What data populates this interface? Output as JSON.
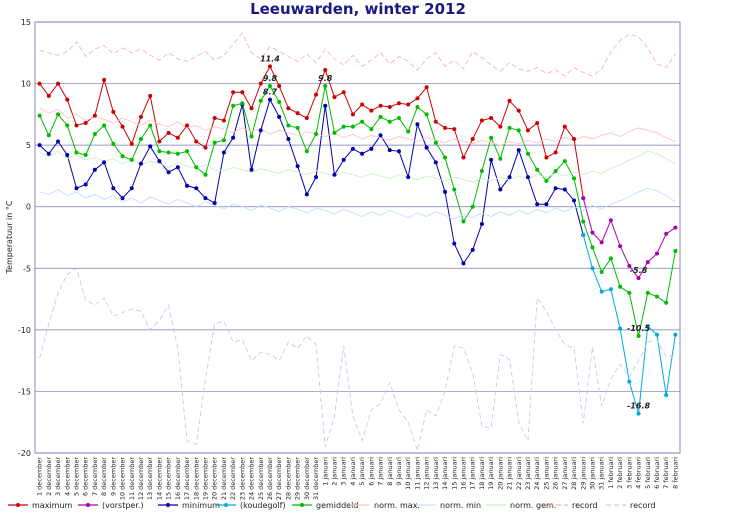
{
  "chart_data": {
    "type": "line",
    "title": "Leeuwarden, winter 2012",
    "y_label": "Temperatuur in °C",
    "categories": [
      "1 december",
      "2 december",
      "3 december",
      "4 december",
      "5 december",
      "6 december",
      "7 december",
      "8 december",
      "9 december",
      "10 december",
      "11 december",
      "12 december",
      "13 december",
      "14 december",
      "15 december",
      "16 december",
      "17 december",
      "18 december",
      "19 december",
      "20 december",
      "21 december",
      "22 december",
      "23 december",
      "24 december",
      "25 december",
      "26 december",
      "27 december",
      "28 december",
      "29 december",
      "30 december",
      "31 december",
      "1 januari",
      "2 januari",
      "3 januari",
      "4 januari",
      "5 januari",
      "6 januari",
      "7 januari",
      "8 januari",
      "9 januari",
      "10 januari",
      "11 januari",
      "12 januari",
      "13 januari",
      "14 januari",
      "15 januari",
      "16 januari",
      "17 januari",
      "18 januari",
      "19 januari",
      "20 januari",
      "21 januari",
      "22 januari",
      "23 januari",
      "24 januari",
      "25 januari",
      "26 januari",
      "27 januari",
      "28 januari",
      "29 januari",
      "30 januari",
      "31 januari",
      "1 februari",
      "2 februari",
      "3 februari",
      "4 februari",
      "5 februari",
      "6 februari",
      "7 februari",
      "8 februari"
    ],
    "ylim": [
      -20,
      15
    ],
    "yticks": [
      15,
      10,
      5,
      0,
      -5,
      -10,
      -15,
      -20
    ],
    "grid": true,
    "series": [
      {
        "name": "maximum",
        "color": "#cc0000",
        "markers": true,
        "label_extremes": "max",
        "values": [
          10,
          9,
          10,
          8.7,
          6.6,
          6.8,
          7.4,
          10.3,
          7.7,
          6.5,
          5.1,
          7.3,
          9,
          5.3,
          6,
          5.6,
          6.6,
          5.3,
          4.8,
          7.2,
          7,
          9.3,
          9.3,
          8,
          10,
          11.4,
          9.8,
          8,
          7.6,
          7.2,
          9.1,
          11.1,
          8.9,
          9.3,
          7.5,
          8.3,
          7.8,
          8.2,
          8.1,
          8.4,
          8.3,
          8.8,
          9.7,
          6.9,
          6.4,
          6.3,
          4.0,
          5.5,
          7.0,
          7.2,
          6.5,
          8.6,
          7.8,
          6.2,
          6.8,
          4.0,
          4.4,
          6.5,
          5.5,
          0.7,
          null,
          null,
          null,
          null,
          null,
          null,
          null,
          null,
          null,
          null
        ]
      },
      {
        "name": "(vorstper.)",
        "color": "#aa00aa",
        "markers": true,
        "label_extremes": "min",
        "values": [
          null,
          null,
          null,
          null,
          null,
          null,
          null,
          null,
          null,
          null,
          null,
          null,
          null,
          null,
          null,
          null,
          null,
          null,
          null,
          null,
          null,
          null,
          null,
          null,
          null,
          null,
          null,
          null,
          null,
          null,
          null,
          null,
          null,
          null,
          null,
          null,
          null,
          null,
          null,
          null,
          null,
          null,
          null,
          null,
          null,
          null,
          null,
          null,
          null,
          null,
          null,
          null,
          null,
          null,
          null,
          null,
          null,
          null,
          null,
          0.7,
          -2.1,
          -2.9,
          -1.1,
          -3.2,
          -4.8,
          -5.8,
          -4.5,
          -3.8,
          -2.2,
          -1.7
        ]
      },
      {
        "name": "minimum",
        "color": "#0000aa",
        "markers": true,
        "label_extremes": "max",
        "values": [
          5.0,
          4.3,
          5.3,
          4.2,
          1.5,
          1.8,
          3.0,
          3.6,
          1.5,
          0.7,
          1.5,
          3.5,
          4.9,
          3.7,
          2.8,
          3.2,
          1.7,
          1.5,
          0.7,
          0.3,
          4.4,
          5.6,
          8.3,
          3.0,
          6.2,
          8.7,
          7.3,
          5.5,
          3.3,
          1.0,
          2.4,
          8.2,
          2.6,
          3.8,
          4.7,
          4.3,
          4.7,
          5.8,
          4.6,
          4.5,
          2.4,
          6.7,
          4.8,
          3.6,
          1.2,
          -3.0,
          -4.6,
          -3.5,
          -1.4,
          3.8,
          1.4,
          2.4,
          4.6,
          2.4,
          0.2,
          0.2,
          1.5,
          1.4,
          0.5,
          -2.3,
          null,
          null,
          null,
          null,
          null,
          null,
          null,
          null,
          null,
          null
        ]
      },
      {
        "name": "(koudegolf)",
        "color": "#00aadd",
        "markers": true,
        "label_extremes": "min",
        "values": [
          null,
          null,
          null,
          null,
          null,
          null,
          null,
          null,
          null,
          null,
          null,
          null,
          null,
          null,
          null,
          null,
          null,
          null,
          null,
          null,
          null,
          null,
          null,
          null,
          null,
          null,
          null,
          null,
          null,
          null,
          null,
          null,
          null,
          null,
          null,
          null,
          null,
          null,
          null,
          null,
          null,
          null,
          null,
          null,
          null,
          null,
          null,
          null,
          null,
          null,
          null,
          null,
          null,
          null,
          null,
          null,
          null,
          null,
          null,
          -2.3,
          -5.0,
          -6.9,
          -6.7,
          -9.9,
          -14.2,
          -16.8,
          -9.7,
          -10.4,
          -15.3,
          -10.4
        ]
      },
      {
        "name": "gemiddeld",
        "color": "#00bb00",
        "markers": true,
        "label_extremes": "both",
        "values": [
          7.4,
          5.8,
          7.5,
          6.6,
          4.4,
          4.2,
          5.9,
          6.6,
          5.1,
          4.1,
          3.8,
          5.5,
          6.6,
          4.5,
          4.4,
          4.3,
          4.5,
          3.2,
          2.6,
          5.2,
          5.4,
          8.2,
          8.4,
          5.7,
          8.6,
          9.8,
          8.5,
          6.6,
          6.4,
          4.5,
          5.9,
          9.8,
          6.0,
          6.5,
          6.5,
          6.9,
          6.3,
          7.3,
          6.9,
          7.2,
          6.1,
          8.1,
          7.5,
          5.2,
          4.0,
          1.4,
          -1.2,
          0.0,
          2.9,
          5.6,
          3.9,
          6.4,
          6.2,
          4.3,
          3.0,
          2.1,
          2.9,
          3.7,
          2.3,
          -1.2,
          -3.3,
          -5.3,
          -4.2,
          -6.5,
          -7.0,
          -10.5,
          -7.0,
          -7.3,
          -7.8,
          -3.6
        ]
      },
      {
        "name": "norm. max.",
        "color": "#ffc4c4",
        "markers": false,
        "values": [
          8.0,
          7.6,
          7.9,
          7.2,
          7.5,
          7.0,
          7.3,
          7.1,
          6.8,
          7.2,
          6.9,
          6.6,
          7.0,
          6.7,
          6.5,
          6.9,
          6.4,
          6.6,
          6.2,
          6.5,
          6.3,
          6.0,
          6.4,
          6.1,
          6.3,
          5.9,
          6.2,
          6.0,
          5.8,
          6.1,
          5.9,
          5.7,
          6.0,
          5.6,
          5.9,
          5.5,
          5.8,
          5.6,
          5.4,
          5.7,
          5.5,
          5.3,
          5.6,
          5.4,
          5.2,
          5.5,
          5.3,
          5.1,
          5.4,
          5.2,
          5.0,
          5.3,
          5.1,
          5.4,
          5.2,
          5.5,
          5.3,
          5.6,
          5.4,
          5.7,
          5.5,
          5.8,
          6.0,
          5.7,
          6.1,
          6.4,
          6.2,
          6.0,
          5.6,
          5.3
        ]
      },
      {
        "name": "norm. min",
        "color": "#c4ddff",
        "markers": false,
        "values": [
          1.2,
          1.0,
          1.4,
          0.9,
          1.2,
          0.7,
          1.0,
          0.6,
          0.9,
          0.4,
          0.7,
          0.3,
          0.8,
          0.5,
          0.2,
          0.6,
          0.3,
          0.0,
          0.4,
          0.1,
          -0.2,
          0.2,
          0.0,
          -0.3,
          0.1,
          -0.1,
          -0.4,
          0.0,
          -0.2,
          -0.5,
          -0.1,
          -0.3,
          -0.6,
          -0.2,
          -0.5,
          -0.8,
          -0.4,
          -0.7,
          -0.3,
          -0.6,
          -0.9,
          -0.5,
          -0.8,
          -0.4,
          -0.7,
          -1.0,
          -0.6,
          -0.9,
          -0.5,
          -0.8,
          -0.4,
          -0.7,
          -0.3,
          -0.6,
          -0.2,
          -0.5,
          -0.1,
          -0.4,
          0.0,
          -0.3,
          0.1,
          -0.2,
          0.2,
          0.5,
          0.8,
          1.2,
          1.5,
          1.3,
          0.9,
          0.4
        ]
      },
      {
        "name": "norm. gem.",
        "color": "#c8f0c8",
        "markers": false,
        "values": [
          4.4,
          4.1,
          4.5,
          3.9,
          4.2,
          3.8,
          4.0,
          3.7,
          3.9,
          3.5,
          3.8,
          3.4,
          3.7,
          3.5,
          3.2,
          3.6,
          3.3,
          3.1,
          3.4,
          3.0,
          2.9,
          3.2,
          3.0,
          2.8,
          3.1,
          2.9,
          2.7,
          3.0,
          2.8,
          2.6,
          2.9,
          2.7,
          2.5,
          2.8,
          2.6,
          2.4,
          2.7,
          2.5,
          2.3,
          2.6,
          2.4,
          2.2,
          2.5,
          2.3,
          2.1,
          2.4,
          2.2,
          2.0,
          2.3,
          2.1,
          2.4,
          2.2,
          2.5,
          2.3,
          2.6,
          2.4,
          2.7,
          2.5,
          2.8,
          2.6,
          2.9,
          2.7,
          3.1,
          3.4,
          3.8,
          4.1,
          4.5,
          4.3,
          3.9,
          3.5
        ]
      },
      {
        "name": "record",
        "color": "#ffb0b0",
        "markers": false,
        "dashed": true,
        "values": [
          12.7,
          12.5,
          12.3,
          12.6,
          13.4,
          12.2,
          12.8,
          13.1,
          12.4,
          12.9,
          12.5,
          12.8,
          12.3,
          11.9,
          12.5,
          12.0,
          11.8,
          12.2,
          12.6,
          11.9,
          12.3,
          13.2,
          14.1,
          12.5,
          12.0,
          13.0,
          12.6,
          12.2,
          11.8,
          12.4,
          11.7,
          12.8,
          12.0,
          11.5,
          12.3,
          11.4,
          11.9,
          12.5,
          11.6,
          12.2,
          11.8,
          11.1,
          12.0,
          12.5,
          11.4,
          11.9,
          11.2,
          12.6,
          12.1,
          11.5,
          11.0,
          11.7,
          11.2,
          11.0,
          11.3,
          10.8,
          11.1,
          10.6,
          11.3,
          10.9,
          10.6,
          11.2,
          12.6,
          13.5,
          14.0,
          13.8,
          12.9,
          11.6,
          11.3,
          12.4
        ]
      },
      {
        "name": "record",
        "color": "#c8c8ee",
        "markers": false,
        "dashed": true,
        "values": [
          -12.3,
          -9.5,
          -7.0,
          -5.5,
          -5.0,
          -7.6,
          -8.0,
          -7.4,
          -8.9,
          -8.6,
          -8.3,
          -8.5,
          -10.0,
          -9.2,
          -8.0,
          -11.5,
          -19.0,
          -19.3,
          -14.0,
          -9.5,
          -9.3,
          -11.0,
          -10.8,
          -12.5,
          -11.8,
          -12.0,
          -12.5,
          -11.0,
          -11.5,
          -10.5,
          -11.2,
          -19.5,
          -17.0,
          -11.3,
          -17.0,
          -19.0,
          -16.5,
          -16.0,
          -14.3,
          -16.5,
          -17.5,
          -19.8,
          -16.5,
          -17.0,
          -15.0,
          -11.3,
          -11.5,
          -13.5,
          -17.8,
          -18.0,
          -12.0,
          -12.4,
          -17.5,
          -19.0,
          -7.4,
          -8.5,
          -10.0,
          -11.2,
          -11.5,
          -17.6,
          -11.4,
          -16.2,
          -14.0,
          -12.8,
          -13.8,
          -12.5,
          -11.0,
          -10.8,
          -12.2,
          -12.0
        ]
      }
    ]
  }
}
